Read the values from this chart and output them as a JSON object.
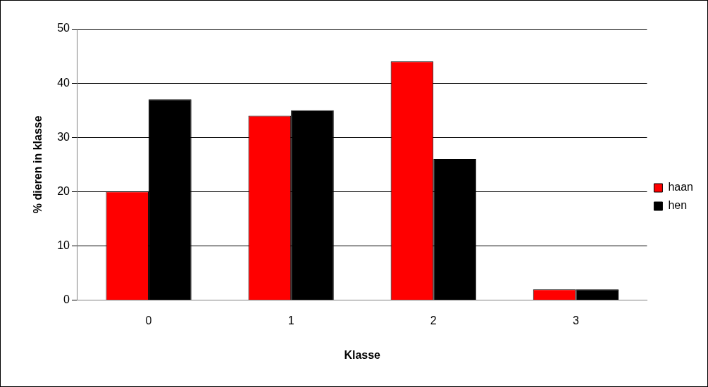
{
  "chart_data": {
    "type": "bar",
    "xlabel": "Klasse",
    "ylabel": "% dieren in klasse",
    "categories": [
      "0",
      "1",
      "2",
      "3"
    ],
    "series": [
      {
        "name": "haan",
        "color": "#ff0000",
        "values": [
          20,
          34,
          44,
          2
        ]
      },
      {
        "name": "hen",
        "color": "#000000",
        "values": [
          37,
          35,
          26,
          2
        ]
      }
    ],
    "ylim": [
      0,
      50
    ],
    "yticks": [
      0,
      10,
      20,
      30,
      40,
      50
    ],
    "grid": "y",
    "legend": "right"
  }
}
